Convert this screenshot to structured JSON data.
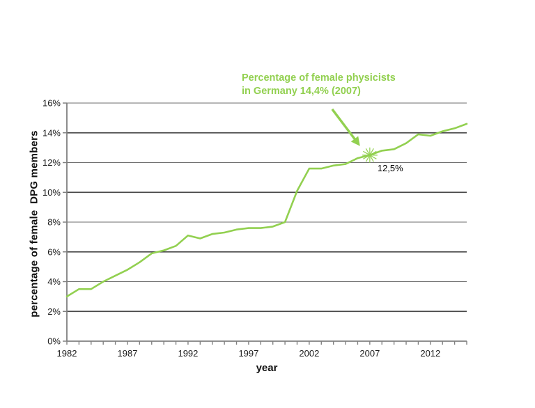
{
  "chart_data": {
    "type": "line",
    "title": "",
    "xlabel": "year",
    "ylabel": "percentage of female  DPG members",
    "xlim": [
      1982,
      2015
    ],
    "ylim": [
      0,
      16
    ],
    "grid": "horizontal",
    "legend": "none",
    "x_ticks_every_year": true,
    "x_tick_labels": [
      {
        "year": 1982,
        "label": "1982"
      },
      {
        "year": 1987,
        "label": "1987"
      },
      {
        "year": 1992,
        "label": "1992"
      },
      {
        "year": 1997,
        "label": "1997"
      },
      {
        "year": 2002,
        "label": "2002"
      },
      {
        "year": 2007,
        "label": "2007"
      },
      {
        "year": 2012,
        "label": "2012"
      }
    ],
    "y_tick_labels": [
      {
        "value": 0,
        "label": "0%"
      },
      {
        "value": 2,
        "label": "2%"
      },
      {
        "value": 4,
        "label": "4%"
      },
      {
        "value": 6,
        "label": "6%"
      },
      {
        "value": 8,
        "label": "8%"
      },
      {
        "value": 10,
        "label": "10%"
      },
      {
        "value": 12,
        "label": "12%"
      },
      {
        "value": 14,
        "label": "14%"
      },
      {
        "value": 16,
        "label": "16%"
      }
    ],
    "series": [
      {
        "name": "percentage of female DPG members",
        "color": "#92d050",
        "x": [
          1982,
          1983,
          1984,
          1985,
          1986,
          1987,
          1988,
          1989,
          1990,
          1991,
          1992,
          1993,
          1994,
          1995,
          1996,
          1997,
          1998,
          1999,
          2000,
          2001,
          2002,
          2003,
          2004,
          2005,
          2006,
          2007,
          2008,
          2009,
          2010,
          2011,
          2012,
          2013,
          2014,
          2015
        ],
        "values": [
          3.0,
          3.5,
          3.5,
          4.0,
          4.4,
          4.8,
          5.3,
          5.9,
          6.1,
          6.4,
          7.1,
          6.9,
          7.2,
          7.3,
          7.5,
          7.6,
          7.6,
          7.7,
          8.0,
          10.1,
          11.6,
          11.6,
          11.8,
          11.9,
          12.3,
          12.5,
          12.8,
          12.9,
          13.3,
          13.9,
          13.8,
          14.1,
          14.3,
          14.6
        ]
      }
    ],
    "highlight_point": {
      "year": 2007,
      "value": 12.5,
      "label": "12,5%",
      "marker": "asterisk-star"
    }
  },
  "annotation": {
    "line1": "Percentage of female physicists",
    "line2": "in Germany 14,4% (2007)",
    "color": "#92d050"
  },
  "colors": {
    "line": "#92d050",
    "grid_major": "#4a4a4a",
    "grid_minor": "#6e6e6e",
    "axis": "#808080",
    "text": "#1a1a1a",
    "background": "#ffffff"
  }
}
